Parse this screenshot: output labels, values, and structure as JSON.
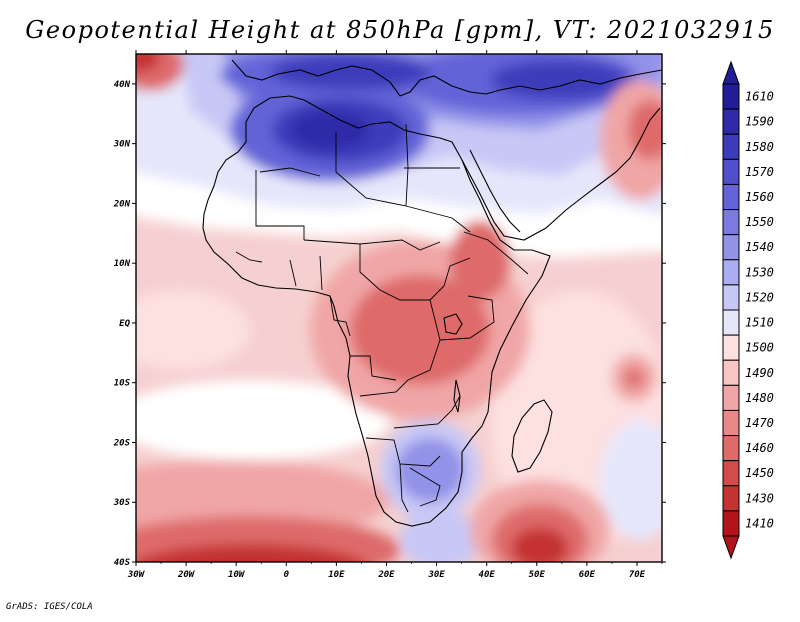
{
  "title": "Geopotential Height at 850hPa [gpm], VT: 2021032915",
  "credit": "GrADS: IGES/COLA",
  "map": {
    "region": "Africa and surrounding ocean",
    "lon_range": [
      -30,
      75
    ],
    "lat_range": [
      -40,
      45
    ],
    "lon_ticks": [
      {
        "lon": -30,
        "label": "30W"
      },
      {
        "lon": -20,
        "label": "20W"
      },
      {
        "lon": -10,
        "label": "10W"
      },
      {
        "lon": 0,
        "label": "0"
      },
      {
        "lon": 10,
        "label": "10E"
      },
      {
        "lon": 20,
        "label": "20E"
      },
      {
        "lon": 30,
        "label": "30E"
      },
      {
        "lon": 40,
        "label": "40E"
      },
      {
        "lon": 50,
        "label": "50E"
      },
      {
        "lon": 60,
        "label": "60E"
      },
      {
        "lon": 70,
        "label": "70E"
      }
    ],
    "lat_ticks": [
      {
        "lat": 40,
        "label": "40N"
      },
      {
        "lat": 30,
        "label": "30N"
      },
      {
        "lat": 20,
        "label": "20N"
      },
      {
        "lat": 10,
        "label": "10N"
      },
      {
        "lat": 0,
        "label": "EQ"
      },
      {
        "lat": -10,
        "label": "10S"
      },
      {
        "lat": -20,
        "label": "20S"
      },
      {
        "lat": -30,
        "label": "30S"
      },
      {
        "lat": -40,
        "label": "40S"
      }
    ]
  },
  "colorbar": {
    "top_triangle_color": "#221c96",
    "bottom_triangle_color": "#b3141c",
    "bins": [
      {
        "label": "1610",
        "color": "#221c96"
      },
      {
        "label": "1590",
        "color": "#2e2aa8"
      },
      {
        "label": "1580",
        "color": "#3c3cbc"
      },
      {
        "label": "1570",
        "color": "#5050cc"
      },
      {
        "label": "1560",
        "color": "#6464d8"
      },
      {
        "label": "1550",
        "color": "#7a7ae0"
      },
      {
        "label": "1540",
        "color": "#9292e8"
      },
      {
        "label": "1530",
        "color": "#acacf0"
      },
      {
        "label": "1520",
        "color": "#c8c8f6"
      },
      {
        "label": "1510",
        "color": "#e6e6fb"
      },
      {
        "label": "1500",
        "color": "#fde0e0"
      },
      {
        "label": "1490",
        "color": "#f8c4c4"
      },
      {
        "label": "1480",
        "color": "#f0a6a6"
      },
      {
        "label": "1470",
        "color": "#e88888"
      },
      {
        "label": "1460",
        "color": "#de6a6a"
      },
      {
        "label": "1450",
        "color": "#d24c4c"
      },
      {
        "label": "1430",
        "color": "#c43232"
      },
      {
        "label": "1410",
        "color": "#b3141c"
      }
    ]
  },
  "field_colors": {
    "ocean_bg": "#f6d0d0",
    "white_band": "#ffffff",
    "pale_blue": "#e6e6fb",
    "light_blue": "#c8c8f6",
    "mid_blue": "#9292e8",
    "blue": "#6464d8",
    "deep_blue": "#3c3cbc",
    "darkest_blue": "#2e2aa8",
    "pale_red": "#fde0e0",
    "light_red": "#f0a6a6",
    "mid_red": "#de6a6a",
    "red": "#c43232",
    "dark_red": "#b3141c"
  }
}
